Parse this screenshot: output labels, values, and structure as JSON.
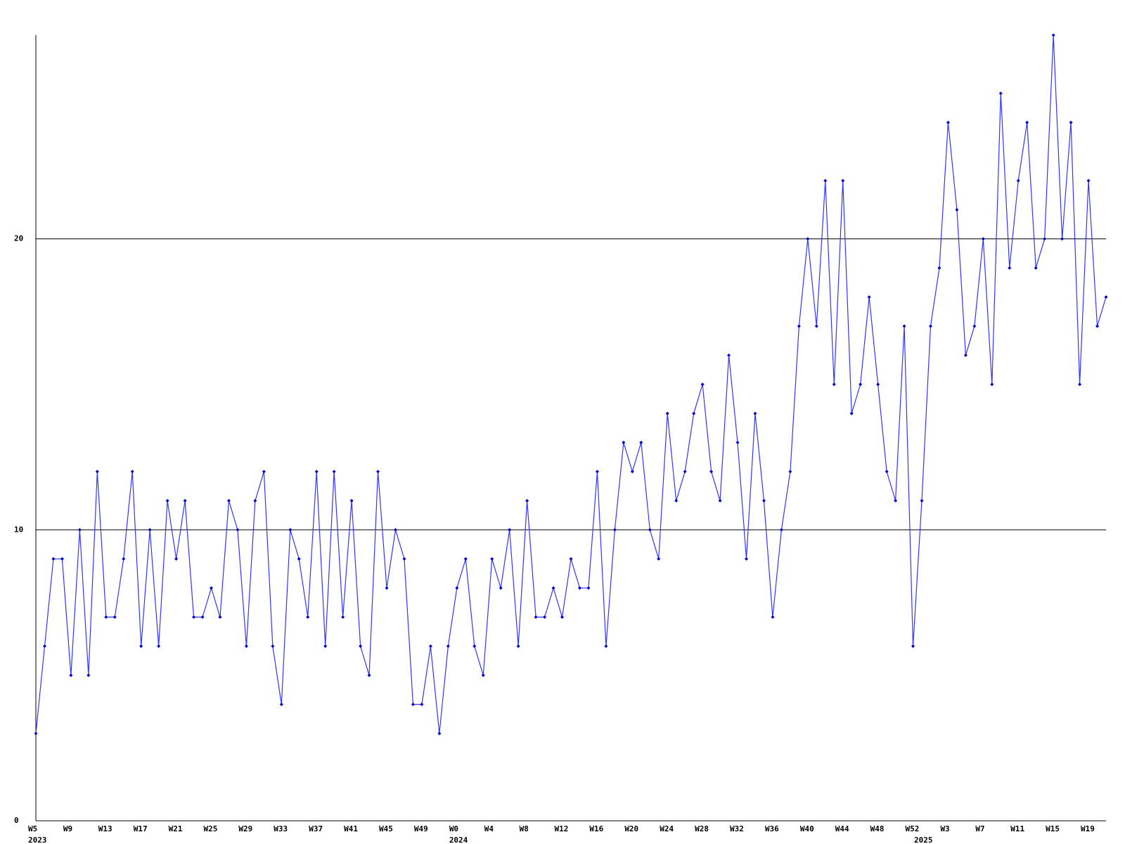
{
  "chart_data": {
    "type": "line",
    "color": "#3333ff",
    "marker_color": "#0000cc",
    "grid": true,
    "ylim": [
      0,
      27
    ],
    "yticks": [
      0,
      10,
      20
    ],
    "categories": [
      "W5",
      null,
      null,
      null,
      "W9",
      null,
      null,
      null,
      "W13",
      null,
      null,
      null,
      "W17",
      null,
      null,
      null,
      "W21",
      null,
      null,
      null,
      "W25",
      null,
      null,
      null,
      "W29",
      null,
      null,
      null,
      "W33",
      null,
      null,
      null,
      "W37",
      null,
      null,
      null,
      "W41",
      null,
      null,
      null,
      "W45",
      null,
      null,
      null,
      "W49",
      null,
      null,
      null,
      "W0",
      null,
      null,
      null,
      "W4",
      null,
      null,
      null,
      "W8",
      null,
      null,
      null,
      "W12",
      null,
      null,
      null,
      "W16",
      null,
      null,
      null,
      "W20",
      null,
      null,
      null,
      "W24",
      null,
      null,
      null,
      "W28",
      null,
      null,
      null,
      "W32",
      null,
      null,
      null,
      "W36",
      null,
      null,
      null,
      "W40",
      null,
      null,
      null,
      "W44",
      null,
      null,
      null,
      "W48",
      null,
      null,
      null,
      "W52",
      null,
      null,
      null,
      "W3",
      null,
      null,
      null,
      "W7",
      null,
      null,
      null,
      "W11",
      null,
      null,
      null,
      "W15",
      null,
      null,
      null,
      "W19",
      null,
      null
    ],
    "category_years": [
      "2023",
      null,
      null,
      null,
      null,
      null,
      null,
      null,
      null,
      null,
      null,
      null,
      null,
      null,
      null,
      null,
      null,
      null,
      null,
      null,
      null,
      null,
      null,
      null,
      null,
      null,
      null,
      null,
      null,
      null,
      null,
      null,
      null,
      null,
      null,
      null,
      null,
      null,
      null,
      null,
      null,
      null,
      null,
      null,
      null,
      null,
      null,
      null,
      "2024",
      null,
      null,
      null,
      null,
      null,
      null,
      null,
      null,
      null,
      null,
      null,
      null,
      null,
      null,
      null,
      null,
      null,
      null,
      null,
      null,
      null,
      null,
      null,
      null,
      null,
      null,
      null,
      null,
      null,
      null,
      null,
      null,
      null,
      null,
      null,
      null,
      null,
      null,
      null,
      null,
      null,
      null,
      null,
      null,
      null,
      null,
      null,
      null,
      null,
      null,
      null,
      null,
      "2025",
      null,
      null,
      null,
      null,
      null,
      null,
      null,
      null,
      null,
      null,
      null,
      null,
      null,
      null,
      null,
      null,
      null,
      null,
      null,
      null,
      null
    ],
    "values": [
      3,
      6,
      9,
      9,
      5,
      10,
      5,
      12,
      7,
      7,
      9,
      12,
      6,
      10,
      6,
      11,
      9,
      11,
      7,
      7,
      8,
      7,
      11,
      10,
      6,
      11,
      12,
      6,
      4,
      10,
      9,
      7,
      12,
      6,
      12,
      7,
      11,
      6,
      5,
      12,
      8,
      10,
      9,
      4,
      4,
      6,
      3,
      6,
      8,
      9,
      6,
      5,
      9,
      8,
      10,
      6,
      11,
      7,
      7,
      8,
      7,
      9,
      8,
      8,
      12,
      6,
      10,
      13,
      12,
      13,
      10,
      9,
      14,
      11,
      12,
      14,
      15,
      12,
      11,
      16,
      13,
      9,
      14,
      11,
      7,
      10,
      12,
      17,
      20,
      17,
      22,
      15,
      22,
      14,
      15,
      18,
      15,
      12,
      11,
      17,
      6,
      11,
      17,
      19,
      24,
      21,
      16,
      17,
      20,
      15,
      25,
      19,
      22,
      24,
      19,
      20,
      27,
      20,
      24,
      15,
      22,
      17,
      18
    ]
  }
}
